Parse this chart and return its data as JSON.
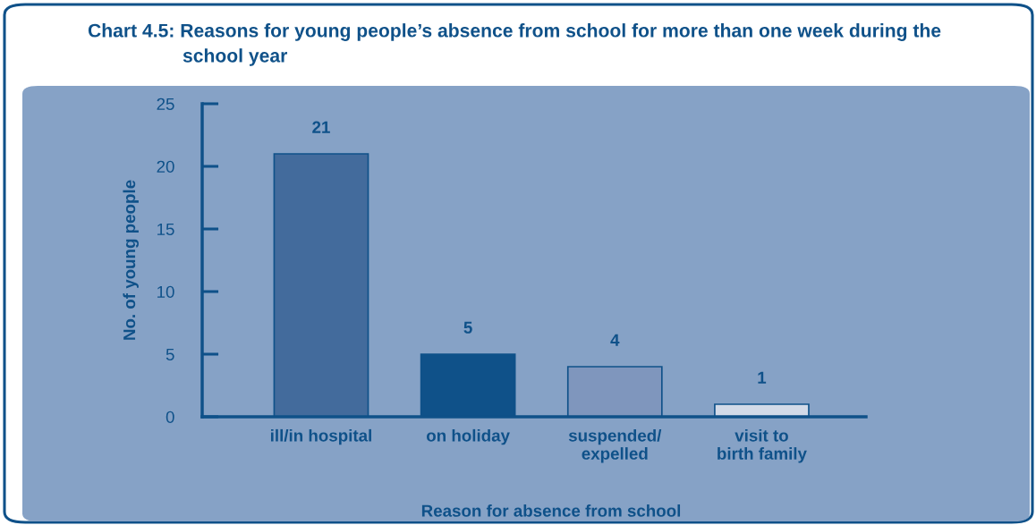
{
  "chart_data": {
    "type": "bar",
    "title": "Chart 4.5: Reasons for young people’s absence from school for more than one week during the\nschool year",
    "xlabel": "Reason for absence from school",
    "ylabel": "No. of young people",
    "categories": [
      "ill/in hospital",
      "on holiday",
      "suspended/\nexpelled",
      "visit to\nbirth family"
    ],
    "values": [
      21,
      5,
      4,
      1
    ],
    "colors": [
      "#436b9c",
      "#0f5189",
      "#7f96bd",
      "#d2dae8"
    ],
    "ylim": [
      0,
      25
    ],
    "yticks": [
      0,
      5,
      10,
      15,
      20,
      25
    ],
    "data_labels": true
  }
}
